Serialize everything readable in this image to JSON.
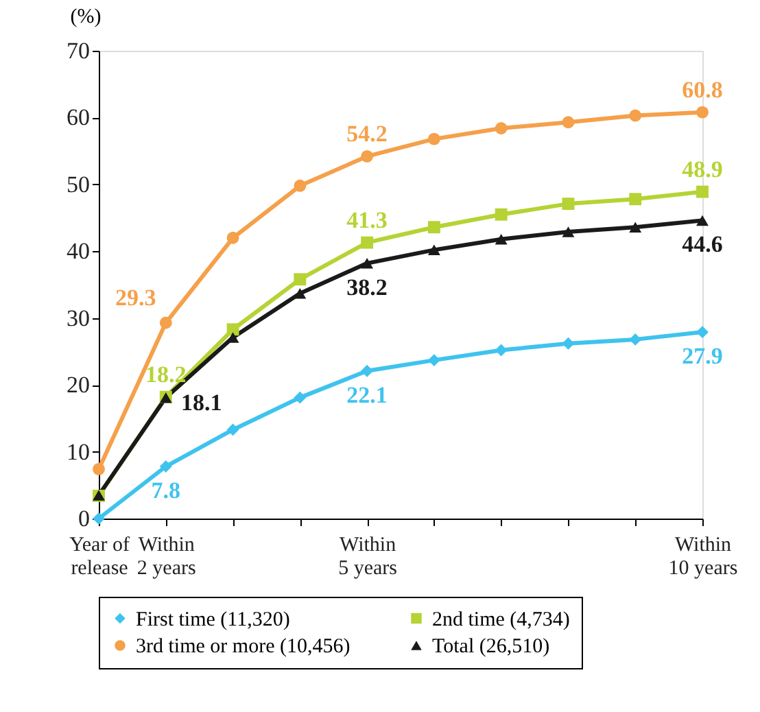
{
  "chart_data": {
    "type": "line",
    "ylabel": "(%)",
    "categories": [
      "Year of\nrelease",
      "Within\n2 years",
      null,
      null,
      "Within\n5 years",
      null,
      null,
      null,
      null,
      "Within\n10 years"
    ],
    "ylim": [
      0,
      70
    ],
    "yticks": [
      0,
      10,
      20,
      30,
      40,
      50,
      60,
      70
    ],
    "grid": false,
    "legend": "bottom",
    "line_style": "solid",
    "series": [
      {
        "name": "First time (11,320)",
        "color": "#3fc3ee",
        "marker": "diamond",
        "values": [
          0,
          7.8,
          13.3,
          18.1,
          22.1,
          23.7,
          25.2,
          26.2,
          26.8,
          27.9
        ],
        "value_labels": [
          null,
          "7.8",
          null,
          null,
          "22.1",
          null,
          null,
          null,
          null,
          "27.9"
        ]
      },
      {
        "name": "2nd time (4,734)",
        "color": "#b5d334",
        "marker": "square",
        "values": [
          3.4,
          18.2,
          28.3,
          35.8,
          41.3,
          43.6,
          45.5,
          47.1,
          47.8,
          48.9
        ],
        "value_labels": [
          null,
          "18.2",
          null,
          null,
          "41.3",
          null,
          null,
          null,
          null,
          "48.9"
        ]
      },
      {
        "name": "3rd time or more (10,456)",
        "color": "#f5a04a",
        "marker": "circle",
        "values": [
          7.4,
          29.3,
          42.0,
          49.8,
          54.2,
          56.8,
          58.4,
          59.3,
          60.3,
          60.8
        ],
        "value_labels": [
          null,
          "29.3",
          null,
          null,
          "54.2",
          null,
          null,
          null,
          null,
          "60.8"
        ]
      },
      {
        "name": "Total (26,510)",
        "color": "#1a1a1a",
        "marker": "triangle",
        "values": [
          3.5,
          18.1,
          27.1,
          33.7,
          38.2,
          40.2,
          41.8,
          42.9,
          43.6,
          44.6
        ],
        "value_labels": [
          null,
          "18.1",
          null,
          null,
          "38.2",
          null,
          null,
          null,
          null,
          "44.6"
        ]
      }
    ]
  }
}
